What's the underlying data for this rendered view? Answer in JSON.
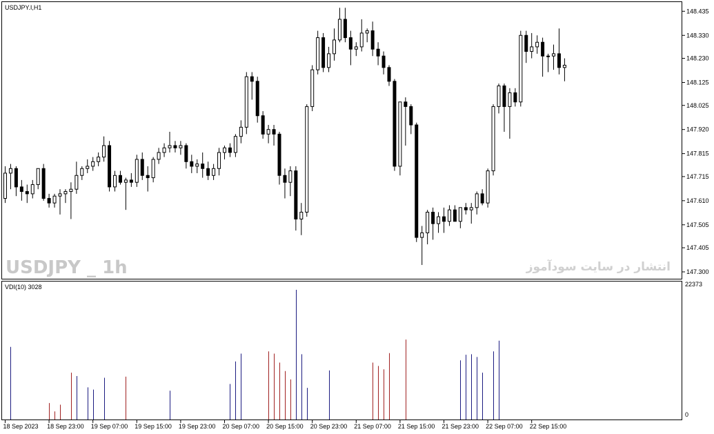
{
  "chart_data": [
    {
      "type": "candlestick",
      "symbol_label": "USDJPY.I,H1",
      "watermark": "USDJPY _ 1h",
      "watermark_fa": "انتشار در سایت سودآموز",
      "ylim": [
        147.27,
        148.475
      ],
      "y_ticks": [
        "148.435",
        "148.330",
        "148.230",
        "148.125",
        "148.025",
        "147.920",
        "147.815",
        "147.715",
        "147.610",
        "147.505",
        "147.405",
        "147.300"
      ],
      "colors": {
        "bull_body": "#ffffff",
        "bear_body": "#000000",
        "wick": "#000000"
      },
      "candles": [
        {
          "o": 147.62,
          "h": 147.76,
          "l": 147.6,
          "c": 147.73
        },
        {
          "o": 147.73,
          "h": 147.77,
          "l": 147.66,
          "c": 147.75
        },
        {
          "o": 147.75,
          "h": 147.76,
          "l": 147.63,
          "c": 147.67
        },
        {
          "o": 147.67,
          "h": 147.7,
          "l": 147.61,
          "c": 147.65
        },
        {
          "o": 147.65,
          "h": 147.68,
          "l": 147.6,
          "c": 147.64
        },
        {
          "o": 147.64,
          "h": 147.7,
          "l": 147.62,
          "c": 147.68
        },
        {
          "o": 147.68,
          "h": 147.74,
          "l": 147.66,
          "c": 147.75
        },
        {
          "o": 147.75,
          "h": 147.77,
          "l": 147.61,
          "c": 147.62
        },
        {
          "o": 147.62,
          "h": 147.64,
          "l": 147.58,
          "c": 147.6
        },
        {
          "o": 147.6,
          "h": 147.64,
          "l": 147.58,
          "c": 147.63
        },
        {
          "o": 147.63,
          "h": 147.66,
          "l": 147.55,
          "c": 147.64
        },
        {
          "o": 147.64,
          "h": 147.66,
          "l": 147.6,
          "c": 147.65
        },
        {
          "o": 147.65,
          "h": 147.69,
          "l": 147.53,
          "c": 147.66
        },
        {
          "o": 147.66,
          "h": 147.78,
          "l": 147.64,
          "c": 147.72
        },
        {
          "o": 147.72,
          "h": 147.76,
          "l": 147.7,
          "c": 147.75
        },
        {
          "o": 147.75,
          "h": 147.79,
          "l": 147.73,
          "c": 147.76
        },
        {
          "o": 147.76,
          "h": 147.8,
          "l": 147.74,
          "c": 147.78
        },
        {
          "o": 147.78,
          "h": 147.82,
          "l": 147.76,
          "c": 147.8
        },
        {
          "o": 147.8,
          "h": 147.89,
          "l": 147.78,
          "c": 147.85
        },
        {
          "o": 147.85,
          "h": 147.87,
          "l": 147.65,
          "c": 147.67
        },
        {
          "o": 147.67,
          "h": 147.74,
          "l": 147.65,
          "c": 147.72
        },
        {
          "o": 147.72,
          "h": 147.74,
          "l": 147.68,
          "c": 147.69
        },
        {
          "o": 147.69,
          "h": 147.71,
          "l": 147.57,
          "c": 147.7
        },
        {
          "o": 147.7,
          "h": 147.73,
          "l": 147.67,
          "c": 147.69
        },
        {
          "o": 147.69,
          "h": 147.81,
          "l": 147.67,
          "c": 147.79
        },
        {
          "o": 147.79,
          "h": 147.82,
          "l": 147.7,
          "c": 147.72
        },
        {
          "o": 147.72,
          "h": 147.76,
          "l": 147.65,
          "c": 147.71
        },
        {
          "o": 147.71,
          "h": 147.8,
          "l": 147.69,
          "c": 147.79
        },
        {
          "o": 147.79,
          "h": 147.84,
          "l": 147.77,
          "c": 147.82
        },
        {
          "o": 147.82,
          "h": 147.86,
          "l": 147.8,
          "c": 147.84
        },
        {
          "o": 147.84,
          "h": 147.91,
          "l": 147.82,
          "c": 147.85
        },
        {
          "o": 147.85,
          "h": 147.87,
          "l": 147.82,
          "c": 147.84
        },
        {
          "o": 147.84,
          "h": 147.87,
          "l": 147.81,
          "c": 147.85
        },
        {
          "o": 147.85,
          "h": 147.86,
          "l": 147.75,
          "c": 147.78
        },
        {
          "o": 147.78,
          "h": 147.81,
          "l": 147.73,
          "c": 147.76
        },
        {
          "o": 147.76,
          "h": 147.79,
          "l": 147.73,
          "c": 147.77
        },
        {
          "o": 147.77,
          "h": 147.82,
          "l": 147.71,
          "c": 147.75
        },
        {
          "o": 147.75,
          "h": 147.78,
          "l": 147.7,
          "c": 147.72
        },
        {
          "o": 147.72,
          "h": 147.77,
          "l": 147.7,
          "c": 147.75
        },
        {
          "o": 147.75,
          "h": 147.84,
          "l": 147.72,
          "c": 147.82
        },
        {
          "o": 147.82,
          "h": 147.85,
          "l": 147.79,
          "c": 147.84
        },
        {
          "o": 147.84,
          "h": 147.86,
          "l": 147.8,
          "c": 147.82
        },
        {
          "o": 147.82,
          "h": 147.9,
          "l": 147.8,
          "c": 147.89
        },
        {
          "o": 147.89,
          "h": 147.96,
          "l": 147.86,
          "c": 147.93
        },
        {
          "o": 147.93,
          "h": 148.17,
          "l": 147.9,
          "c": 148.15
        },
        {
          "o": 148.15,
          "h": 148.17,
          "l": 148.05,
          "c": 148.13
        },
        {
          "o": 148.13,
          "h": 148.15,
          "l": 147.95,
          "c": 147.98
        },
        {
          "o": 147.98,
          "h": 148.0,
          "l": 147.88,
          "c": 147.9
        },
        {
          "o": 147.9,
          "h": 147.94,
          "l": 147.86,
          "c": 147.92
        },
        {
          "o": 147.92,
          "h": 147.94,
          "l": 147.85,
          "c": 147.9
        },
        {
          "o": 147.9,
          "h": 147.91,
          "l": 147.68,
          "c": 147.72
        },
        {
          "o": 147.72,
          "h": 147.75,
          "l": 147.62,
          "c": 147.69
        },
        {
          "o": 147.69,
          "h": 147.76,
          "l": 147.63,
          "c": 147.74
        },
        {
          "o": 147.74,
          "h": 147.76,
          "l": 147.48,
          "c": 147.53
        },
        {
          "o": 147.53,
          "h": 147.6,
          "l": 147.46,
          "c": 147.56
        },
        {
          "o": 147.56,
          "h": 148.03,
          "l": 147.54,
          "c": 148.02
        },
        {
          "o": 148.02,
          "h": 148.2,
          "l": 148.0,
          "c": 148.18
        },
        {
          "o": 148.18,
          "h": 148.35,
          "l": 148.16,
          "c": 148.32
        },
        {
          "o": 148.32,
          "h": 148.34,
          "l": 148.17,
          "c": 148.19
        },
        {
          "o": 148.19,
          "h": 148.28,
          "l": 148.17,
          "c": 148.25
        },
        {
          "o": 148.25,
          "h": 148.36,
          "l": 148.22,
          "c": 148.31
        },
        {
          "o": 148.31,
          "h": 148.45,
          "l": 148.3,
          "c": 148.4
        },
        {
          "o": 148.4,
          "h": 148.45,
          "l": 148.3,
          "c": 148.32
        },
        {
          "o": 148.32,
          "h": 148.35,
          "l": 148.2,
          "c": 148.27
        },
        {
          "o": 148.27,
          "h": 148.3,
          "l": 148.24,
          "c": 148.28
        },
        {
          "o": 148.28,
          "h": 148.4,
          "l": 148.26,
          "c": 148.34
        },
        {
          "o": 148.34,
          "h": 148.36,
          "l": 148.3,
          "c": 148.35
        },
        {
          "o": 148.35,
          "h": 148.39,
          "l": 148.24,
          "c": 148.27
        },
        {
          "o": 148.27,
          "h": 148.3,
          "l": 148.2,
          "c": 148.24
        },
        {
          "o": 148.24,
          "h": 148.26,
          "l": 148.16,
          "c": 148.19
        },
        {
          "o": 148.19,
          "h": 148.2,
          "l": 148.11,
          "c": 148.13
        },
        {
          "o": 148.13,
          "h": 148.14,
          "l": 147.74,
          "c": 147.76
        },
        {
          "o": 147.76,
          "h": 148.04,
          "l": 147.72,
          "c": 148.04
        },
        {
          "o": 148.04,
          "h": 148.06,
          "l": 147.85,
          "c": 148.02
        },
        {
          "o": 148.02,
          "h": 148.03,
          "l": 147.9,
          "c": 147.94
        },
        {
          "o": 147.94,
          "h": 147.95,
          "l": 147.43,
          "c": 147.45
        },
        {
          "o": 147.45,
          "h": 147.5,
          "l": 147.33,
          "c": 147.47
        },
        {
          "o": 147.47,
          "h": 147.57,
          "l": 147.42,
          "c": 147.56
        },
        {
          "o": 147.56,
          "h": 147.58,
          "l": 147.44,
          "c": 147.51
        },
        {
          "o": 147.51,
          "h": 147.56,
          "l": 147.47,
          "c": 147.54
        },
        {
          "o": 147.54,
          "h": 147.58,
          "l": 147.47,
          "c": 147.52
        },
        {
          "o": 147.52,
          "h": 147.59,
          "l": 147.5,
          "c": 147.57
        },
        {
          "o": 147.57,
          "h": 147.59,
          "l": 147.53,
          "c": 147.52
        },
        {
          "o": 147.52,
          "h": 147.58,
          "l": 147.49,
          "c": 147.58
        },
        {
          "o": 147.58,
          "h": 147.6,
          "l": 147.55,
          "c": 147.57
        },
        {
          "o": 147.57,
          "h": 147.6,
          "l": 147.51,
          "c": 147.58
        },
        {
          "o": 147.58,
          "h": 147.65,
          "l": 147.55,
          "c": 147.64
        },
        {
          "o": 147.64,
          "h": 147.66,
          "l": 147.59,
          "c": 147.6
        },
        {
          "o": 147.6,
          "h": 147.75,
          "l": 147.58,
          "c": 147.74
        },
        {
          "o": 147.74,
          "h": 148.03,
          "l": 147.72,
          "c": 148.02
        },
        {
          "o": 148.02,
          "h": 148.12,
          "l": 147.99,
          "c": 148.11
        },
        {
          "o": 148.11,
          "h": 148.12,
          "l": 147.91,
          "c": 148.02
        },
        {
          "o": 148.02,
          "h": 148.1,
          "l": 147.88,
          "c": 148.08
        },
        {
          "o": 148.08,
          "h": 148.1,
          "l": 148.02,
          "c": 148.04
        },
        {
          "o": 148.04,
          "h": 148.35,
          "l": 148.02,
          "c": 148.33
        },
        {
          "o": 148.33,
          "h": 148.35,
          "l": 148.21,
          "c": 148.26
        },
        {
          "o": 148.26,
          "h": 148.34,
          "l": 148.23,
          "c": 148.28
        },
        {
          "o": 148.28,
          "h": 148.33,
          "l": 148.25,
          "c": 148.3
        },
        {
          "o": 148.3,
          "h": 148.32,
          "l": 148.15,
          "c": 148.24
        },
        {
          "o": 148.24,
          "h": 148.25,
          "l": 148.17,
          "c": 148.24
        },
        {
          "o": 148.24,
          "h": 148.29,
          "l": 148.18,
          "c": 148.25
        },
        {
          "o": 148.25,
          "h": 148.36,
          "l": 148.16,
          "c": 148.19
        },
        {
          "o": 148.19,
          "h": 148.23,
          "l": 148.13,
          "c": 148.2
        }
      ],
      "x_axis_labels": [
        {
          "label": "18 Sep 2023",
          "index": 0
        },
        {
          "label": "18 Sep 23:00",
          "index": 8
        },
        {
          "label": "19 Sep 07:00",
          "index": 16
        },
        {
          "label": "19 Sep 15:00",
          "index": 24
        },
        {
          "label": "19 Sep 23:00",
          "index": 32
        },
        {
          "label": "20 Sep 07:00",
          "index": 40
        },
        {
          "label": "20 Sep 15:00",
          "index": 48
        },
        {
          "label": "20 Sep 23:00",
          "index": 56
        },
        {
          "label": "21 Sep 07:00",
          "index": 64
        },
        {
          "label": "21 Sep 15:00",
          "index": 72
        },
        {
          "label": "21 Sep 23:00",
          "index": 80
        },
        {
          "label": "22 Sep 07:00",
          "index": 88
        },
        {
          "label": "22 Sep 15:00",
          "index": 96
        }
      ]
    },
    {
      "type": "bar",
      "indicator_label": "VDI(10) 3028",
      "ylim": [
        0,
        22373
      ],
      "y_ticks": [
        "22373",
        "0"
      ],
      "colors": {
        "up": "#1a1a80",
        "down": "#a02020"
      },
      "bars": [
        {
          "i": 1,
          "v": 12200,
          "color": "up"
        },
        {
          "i": 8,
          "v": 2200,
          "color": "down"
        },
        {
          "i": 9,
          "v": 700,
          "color": "down"
        },
        {
          "i": 10,
          "v": 1900,
          "color": "down"
        },
        {
          "i": 12,
          "v": 7600,
          "color": "down"
        },
        {
          "i": 13,
          "v": 7000,
          "color": "up"
        },
        {
          "i": 15,
          "v": 5000,
          "color": "up"
        },
        {
          "i": 16,
          "v": 4600,
          "color": "up"
        },
        {
          "i": 18,
          "v": 6700,
          "color": "up"
        },
        {
          "i": 22,
          "v": 6900,
          "color": "down"
        },
        {
          "i": 30,
          "v": 4400,
          "color": "up"
        },
        {
          "i": 41,
          "v": 5600,
          "color": "up"
        },
        {
          "i": 42,
          "v": 9600,
          "color": "up"
        },
        {
          "i": 43,
          "v": 11000,
          "color": "up"
        },
        {
          "i": 48,
          "v": 11400,
          "color": "down"
        },
        {
          "i": 49,
          "v": 11000,
          "color": "down"
        },
        {
          "i": 50,
          "v": 9400,
          "color": "down"
        },
        {
          "i": 51,
          "v": 7900,
          "color": "down"
        },
        {
          "i": 52,
          "v": 6400,
          "color": "down"
        },
        {
          "i": 53,
          "v": 22373,
          "color": "up"
        },
        {
          "i": 54,
          "v": 10900,
          "color": "up"
        },
        {
          "i": 55,
          "v": 4900,
          "color": "up"
        },
        {
          "i": 59,
          "v": 8000,
          "color": "up"
        },
        {
          "i": 67,
          "v": 9400,
          "color": "down"
        },
        {
          "i": 68,
          "v": 8800,
          "color": "down"
        },
        {
          "i": 69,
          "v": 8200,
          "color": "down"
        },
        {
          "i": 70,
          "v": 11100,
          "color": "down"
        },
        {
          "i": 73,
          "v": 13500,
          "color": "down"
        },
        {
          "i": 83,
          "v": 9800,
          "color": "up"
        },
        {
          "i": 84,
          "v": 10800,
          "color": "up"
        },
        {
          "i": 85,
          "v": 10900,
          "color": "up"
        },
        {
          "i": 86,
          "v": 10400,
          "color": "up"
        },
        {
          "i": 87,
          "v": 7600,
          "color": "up"
        },
        {
          "i": 89,
          "v": 11400,
          "color": "up"
        },
        {
          "i": 90,
          "v": 13300,
          "color": "up"
        }
      ]
    }
  ]
}
